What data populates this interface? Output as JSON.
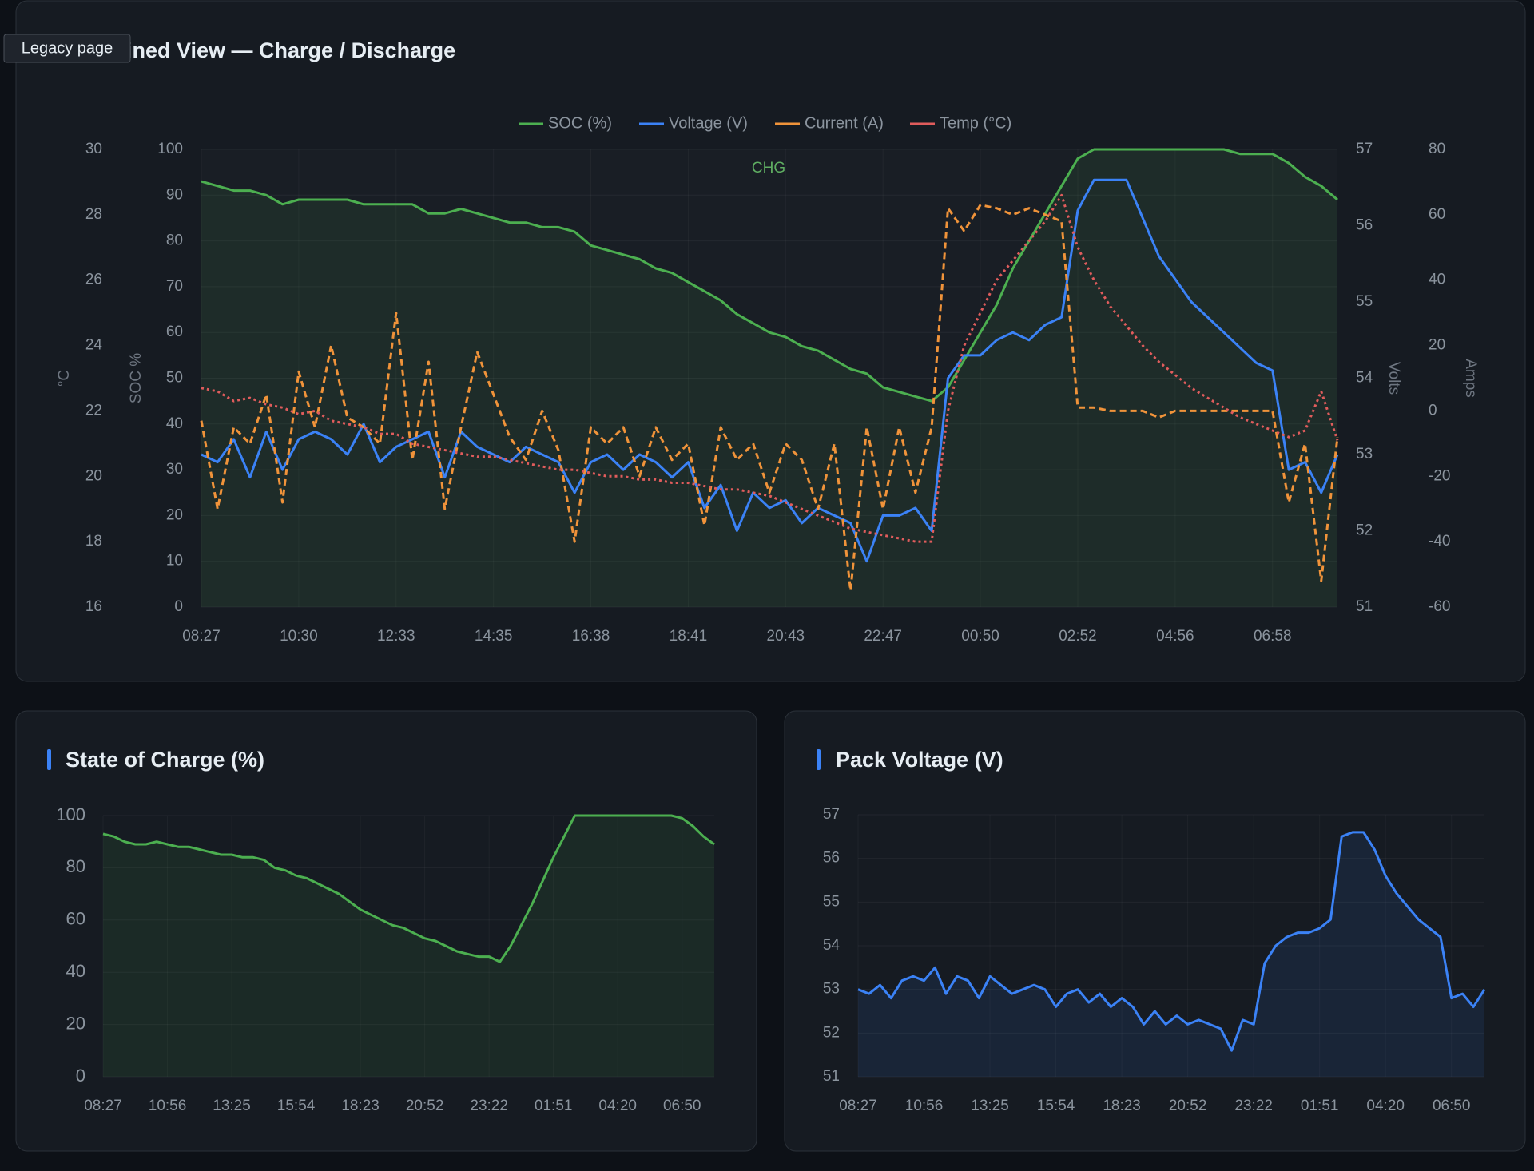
{
  "tooltip": "Legacy page",
  "chart_data": [
    {
      "type": "line",
      "title": "ined View — Charge / Discharge",
      "annotation": "CHG",
      "legend": "top",
      "grid": true,
      "categories": [
        "08:27",
        null,
        null,
        null,
        null,
        null,
        "10:30",
        null,
        null,
        null,
        null,
        null,
        "12:33",
        null,
        null,
        null,
        null,
        null,
        "14:35",
        null,
        null,
        null,
        null,
        null,
        "16:38",
        null,
        null,
        null,
        null,
        null,
        "18:41",
        null,
        null,
        null,
        null,
        null,
        "20:43",
        null,
        null,
        null,
        null,
        null,
        "22:47",
        null,
        null,
        null,
        null,
        null,
        "00:50",
        null,
        null,
        null,
        null,
        null,
        "02:52",
        null,
        null,
        null,
        null,
        null,
        "04:56",
        null,
        null,
        null,
        null,
        null,
        "06:58",
        null,
        null,
        null,
        null
      ],
      "ylabel": "SOC %",
      "ylim": [
        0,
        100
      ],
      "yticks": [
        0,
        10,
        20,
        30,
        40,
        50,
        60,
        70,
        80,
        90,
        100
      ],
      "y2label": "Volts",
      "y2lim": [
        51,
        57
      ],
      "y2ticks": [
        51,
        52,
        53,
        54,
        55,
        56,
        57
      ],
      "y3label": "Amps",
      "y3lim": [
        -60,
        80
      ],
      "y3ticks": [
        -60,
        -40,
        -20,
        0,
        20,
        40,
        60,
        80
      ],
      "y4label": "°C",
      "y4lim": [
        16,
        30
      ],
      "y4ticks": [
        16,
        18,
        20,
        22,
        24,
        26,
        28,
        30
      ],
      "series": [
        {
          "name": "SOC (%)",
          "color": "#4caf50",
          "axis": "y",
          "fill": true,
          "dash": "solid",
          "values": [
            93,
            92,
            91,
            91,
            90,
            88,
            89,
            89,
            89,
            89,
            88,
            88,
            88,
            88,
            86,
            86,
            87,
            86,
            85,
            84,
            84,
            83,
            83,
            82,
            79,
            78,
            77,
            76,
            74,
            73,
            71,
            69,
            67,
            64,
            62,
            60,
            59,
            57,
            56,
            54,
            52,
            51,
            48,
            47,
            46,
            45,
            48,
            54,
            60,
            66,
            74,
            80,
            86,
            92,
            98,
            100,
            100,
            100,
            100,
            100,
            100,
            100,
            100,
            100,
            99,
            99,
            99,
            97,
            94,
            92,
            89
          ]
        },
        {
          "name": "Voltage (V)",
          "color": "#3b82f6",
          "axis": "y2",
          "dash": "solid",
          "values": [
            53.0,
            52.9,
            53.2,
            52.7,
            53.3,
            52.8,
            53.2,
            53.3,
            53.2,
            53.0,
            53.4,
            52.9,
            53.1,
            53.2,
            53.3,
            52.7,
            53.3,
            53.1,
            53.0,
            52.9,
            53.1,
            53.0,
            52.9,
            52.5,
            52.9,
            53.0,
            52.8,
            53.0,
            52.9,
            52.7,
            52.9,
            52.3,
            52.6,
            52.0,
            52.5,
            52.3,
            52.4,
            52.1,
            52.3,
            52.2,
            52.1,
            51.6,
            52.2,
            52.2,
            52.3,
            52.0,
            54.0,
            54.3,
            54.3,
            54.5,
            54.6,
            54.5,
            54.7,
            54.8,
            56.2,
            56.6,
            56.6,
            56.6,
            56.1,
            55.6,
            55.3,
            55.0,
            54.8,
            54.6,
            54.4,
            54.2,
            54.1,
            52.8,
            52.9,
            52.5,
            53.0
          ]
        },
        {
          "name": "Current (A)",
          "color": "#f0933a",
          "axis": "y3",
          "dash": "dashed",
          "values": [
            -3,
            -30,
            -5,
            -10,
            5,
            -28,
            12,
            -5,
            20,
            -2,
            -5,
            -10,
            30,
            -15,
            15,
            -30,
            -5,
            18,
            5,
            -8,
            -15,
            0,
            -12,
            -40,
            -5,
            -10,
            -5,
            -20,
            -5,
            -15,
            -10,
            -35,
            -5,
            -15,
            -10,
            -25,
            -10,
            -15,
            -30,
            -10,
            -55,
            -5,
            -30,
            -5,
            -25,
            -5,
            62,
            55,
            63,
            62,
            60,
            62,
            60,
            58,
            1,
            1,
            0,
            0,
            0,
            -2,
            0,
            0,
            0,
            0,
            0,
            0,
            0,
            -28,
            -10,
            -52,
            -8
          ]
        },
        {
          "name": "Temp (°C)",
          "color": "#e05c5c",
          "axis": "y4",
          "dash": "dotted",
          "values": [
            22.7,
            22.6,
            22.3,
            22.4,
            22.2,
            22.1,
            21.9,
            22.0,
            21.7,
            21.6,
            21.5,
            21.3,
            21.3,
            21.0,
            20.9,
            20.8,
            20.7,
            20.6,
            20.6,
            20.5,
            20.4,
            20.3,
            20.2,
            20.2,
            20.1,
            20.0,
            20.0,
            19.9,
            19.9,
            19.8,
            19.8,
            19.7,
            19.6,
            19.6,
            19.5,
            19.4,
            19.2,
            19.0,
            18.8,
            18.6,
            18.4,
            18.3,
            18.2,
            18.1,
            18.0,
            18.0,
            22.0,
            24.0,
            25.0,
            26.0,
            26.6,
            27.2,
            27.8,
            28.6,
            27.0,
            26.0,
            25.2,
            24.6,
            24.0,
            23.5,
            23.1,
            22.7,
            22.4,
            22.1,
            21.8,
            21.6,
            21.4,
            21.2,
            21.4,
            22.6,
            21.1
          ]
        }
      ]
    },
    {
      "type": "line",
      "title": "State of Charge (%)",
      "grid": true,
      "categories": [
        "08:27",
        null,
        null,
        null,
        null,
        null,
        "10:56",
        null,
        null,
        null,
        null,
        null,
        "13:25",
        null,
        null,
        null,
        null,
        null,
        "15:54",
        null,
        null,
        null,
        null,
        null,
        "18:23",
        null,
        null,
        null,
        null,
        null,
        "20:52",
        null,
        null,
        null,
        null,
        null,
        "23:22",
        null,
        null,
        null,
        null,
        null,
        "01:51",
        null,
        null,
        null,
        null,
        null,
        "04:20",
        null,
        null,
        null,
        null,
        null,
        "06:50",
        null,
        null,
        null
      ],
      "ylim": [
        0,
        100
      ],
      "yticks": [
        0,
        20,
        40,
        60,
        80,
        100
      ],
      "series": [
        {
          "color": "#4caf50",
          "fill": true,
          "values": [
            93,
            92,
            90,
            89,
            89,
            90,
            89,
            88,
            88,
            87,
            86,
            85,
            85,
            84,
            84,
            83,
            80,
            79,
            77,
            76,
            74,
            72,
            70,
            67,
            64,
            62,
            60,
            58,
            57,
            55,
            53,
            52,
            50,
            48,
            47,
            46,
            46,
            44,
            50,
            58,
            66,
            75,
            84,
            92,
            100,
            100,
            100,
            100,
            100,
            100,
            100,
            100,
            100,
            100,
            99,
            96,
            92,
            89
          ]
        }
      ]
    },
    {
      "type": "line",
      "title": "Pack Voltage (V)",
      "grid": true,
      "categories": [
        "08:27",
        null,
        null,
        null,
        null,
        null,
        "10:56",
        null,
        null,
        null,
        null,
        null,
        "13:25",
        null,
        null,
        null,
        null,
        null,
        "15:54",
        null,
        null,
        null,
        null,
        null,
        "18:23",
        null,
        null,
        null,
        null,
        null,
        "20:52",
        null,
        null,
        null,
        null,
        null,
        "23:22",
        null,
        null,
        null,
        null,
        null,
        "01:51",
        null,
        null,
        null,
        null,
        null,
        "04:20",
        null,
        null,
        null,
        null,
        null,
        "06:50",
        null,
        null,
        null
      ],
      "ylim": [
        51,
        57
      ],
      "yticks": [
        51,
        52,
        53,
        54,
        55,
        56,
        57
      ],
      "series": [
        {
          "color": "#3b82f6",
          "fill": true,
          "values": [
            53.0,
            52.9,
            53.1,
            52.8,
            53.2,
            53.3,
            53.2,
            53.5,
            52.9,
            53.3,
            53.2,
            52.8,
            53.3,
            53.1,
            52.9,
            53.0,
            53.1,
            53.0,
            52.6,
            52.9,
            53.0,
            52.7,
            52.9,
            52.6,
            52.8,
            52.6,
            52.2,
            52.5,
            52.2,
            52.4,
            52.2,
            52.3,
            52.2,
            52.1,
            51.6,
            52.3,
            52.2,
            53.6,
            54.0,
            54.2,
            54.3,
            54.3,
            54.4,
            54.6,
            56.5,
            56.6,
            56.6,
            56.2,
            55.6,
            55.2,
            54.9,
            54.6,
            54.4,
            54.2,
            52.8,
            52.9,
            52.6,
            53.0
          ]
        }
      ]
    }
  ]
}
